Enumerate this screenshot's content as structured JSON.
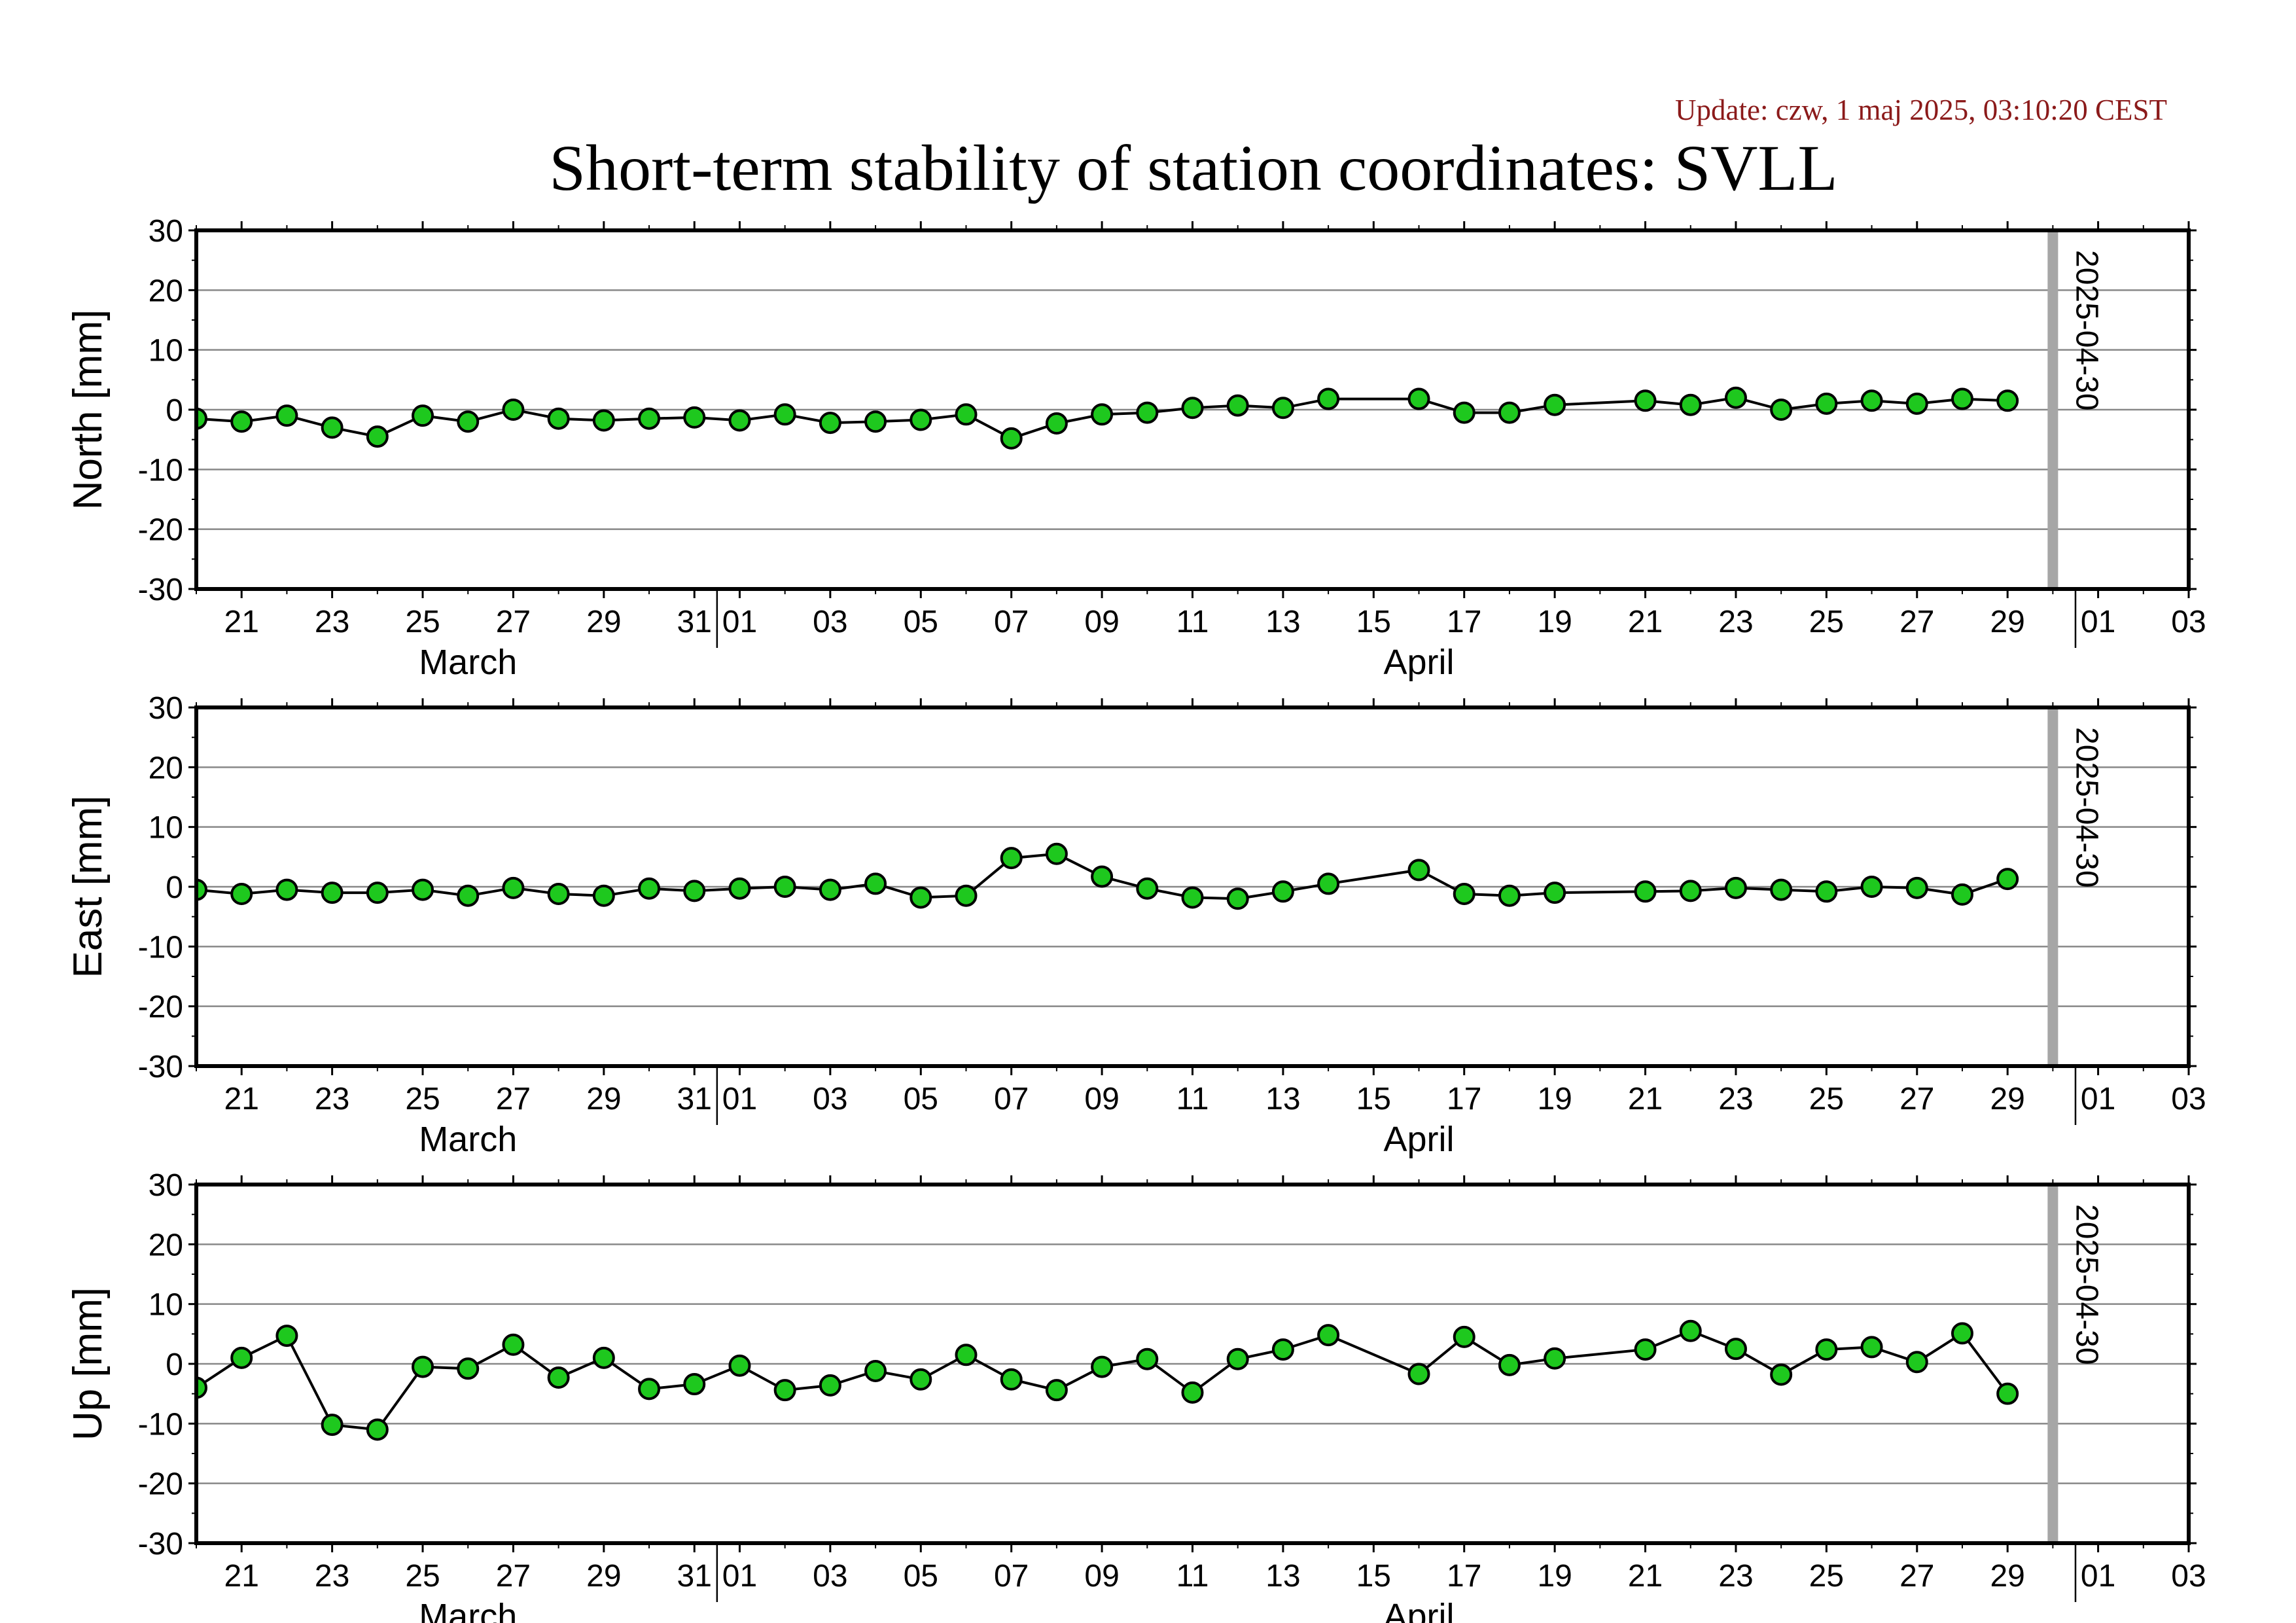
{
  "update_text": "Update: czw, 1 maj 2025, 03:10:20 CEST",
  "title": "Short-term stability of station coordinates: SVLL",
  "colors": {
    "update": "#8b1a1a",
    "marker_fill": "#1ec81e",
    "marker_stroke": "#000000",
    "line": "#000000",
    "grid": "#888888",
    "vline": "#a6a6a6"
  },
  "x_axis": {
    "range": [
      "2025-03-20",
      "2025-05-03"
    ],
    "tick_labels": [
      "21",
      "23",
      "25",
      "27",
      "29",
      "31",
      "01",
      "03",
      "05",
      "07",
      "09",
      "11",
      "13",
      "15",
      "17",
      "19",
      "21",
      "23",
      "25",
      "27",
      "29",
      "01",
      "03"
    ],
    "month_labels": [
      "March",
      "April"
    ]
  },
  "marker_line": {
    "date": "2025-04-30",
    "label": "2025-04-30"
  },
  "chart_data": [
    {
      "type": "line",
      "ylabel": "North [mm]",
      "ylim": [
        -30,
        30
      ],
      "yticks": [
        "30",
        "20",
        "10",
        "0",
        "-10",
        "-20",
        "-30"
      ],
      "grid": true,
      "x": [
        "2025-03-20",
        "2025-03-21",
        "2025-03-22",
        "2025-03-23",
        "2025-03-24",
        "2025-03-25",
        "2025-03-26",
        "2025-03-27",
        "2025-03-28",
        "2025-03-29",
        "2025-03-30",
        "2025-03-31",
        "2025-04-01",
        "2025-04-02",
        "2025-04-03",
        "2025-04-04",
        "2025-04-05",
        "2025-04-06",
        "2025-04-07",
        "2025-04-08",
        "2025-04-09",
        "2025-04-10",
        "2025-04-11",
        "2025-04-12",
        "2025-04-13",
        "2025-04-14",
        "2025-04-16",
        "2025-04-17",
        "2025-04-18",
        "2025-04-19",
        "2025-04-21",
        "2025-04-22",
        "2025-04-23",
        "2025-04-24",
        "2025-04-25",
        "2025-04-26",
        "2025-04-27",
        "2025-04-28",
        "2025-04-29"
      ],
      "values": [
        -1.5,
        -2,
        -1,
        -3,
        -4.5,
        -1,
        -2,
        0,
        -1.5,
        -1.8,
        -1.5,
        -1.3,
        -1.8,
        -0.8,
        -2.2,
        -2,
        -1.7,
        -0.8,
        -4.8,
        -2.3,
        -0.8,
        -0.5,
        0.3,
        0.7,
        0.3,
        1.8,
        1.8,
        -0.5,
        -0.5,
        0.8,
        1.5,
        0.8,
        2,
        0,
        1,
        1.5,
        1,
        1.8,
        1.5
      ]
    },
    {
      "type": "line",
      "ylabel": "East [mm]",
      "ylim": [
        -30,
        30
      ],
      "yticks": [
        "30",
        "20",
        "10",
        "0",
        "-10",
        "-20",
        "-30"
      ],
      "grid": true,
      "x": [
        "2025-03-20",
        "2025-03-21",
        "2025-03-22",
        "2025-03-23",
        "2025-03-24",
        "2025-03-25",
        "2025-03-26",
        "2025-03-27",
        "2025-03-28",
        "2025-03-29",
        "2025-03-30",
        "2025-03-31",
        "2025-04-01",
        "2025-04-02",
        "2025-04-03",
        "2025-04-04",
        "2025-04-05",
        "2025-04-06",
        "2025-04-07",
        "2025-04-08",
        "2025-04-09",
        "2025-04-10",
        "2025-04-11",
        "2025-04-12",
        "2025-04-13",
        "2025-04-14",
        "2025-04-16",
        "2025-04-17",
        "2025-04-18",
        "2025-04-19",
        "2025-04-21",
        "2025-04-22",
        "2025-04-23",
        "2025-04-24",
        "2025-04-25",
        "2025-04-26",
        "2025-04-27",
        "2025-04-28",
        "2025-04-29"
      ],
      "values": [
        -0.5,
        -1.2,
        -0.5,
        -1,
        -1,
        -0.5,
        -1.5,
        -0.2,
        -1.2,
        -1.5,
        -0.3,
        -0.7,
        -0.3,
        0,
        -0.5,
        0.5,
        -1.8,
        -1.5,
        4.8,
        5.5,
        1.7,
        -0.3,
        -1.8,
        -2,
        -0.8,
        0.5,
        2.8,
        -1.2,
        -1.5,
        -1,
        -0.8,
        -0.7,
        -0.2,
        -0.5,
        -0.8,
        0,
        -0.2,
        -1.3,
        1.3
      ]
    },
    {
      "type": "line",
      "ylabel": "Up [mm]",
      "ylim": [
        -30,
        30
      ],
      "yticks": [
        "30",
        "20",
        "10",
        "0",
        "-10",
        "-20",
        "-30"
      ],
      "grid": true,
      "x": [
        "2025-03-20",
        "2025-03-21",
        "2025-03-22",
        "2025-03-23",
        "2025-03-24",
        "2025-03-25",
        "2025-03-26",
        "2025-03-27",
        "2025-03-28",
        "2025-03-29",
        "2025-03-30",
        "2025-03-31",
        "2025-04-01",
        "2025-04-02",
        "2025-04-03",
        "2025-04-04",
        "2025-04-05",
        "2025-04-06",
        "2025-04-07",
        "2025-04-08",
        "2025-04-09",
        "2025-04-10",
        "2025-04-11",
        "2025-04-12",
        "2025-04-13",
        "2025-04-14",
        "2025-04-16",
        "2025-04-17",
        "2025-04-18",
        "2025-04-19",
        "2025-04-21",
        "2025-04-22",
        "2025-04-23",
        "2025-04-24",
        "2025-04-25",
        "2025-04-26",
        "2025-04-27",
        "2025-04-28",
        "2025-04-29"
      ],
      "values": [
        -4,
        1,
        4.7,
        -10.2,
        -11,
        -0.5,
        -0.8,
        3.2,
        -2.3,
        1,
        -4.2,
        -3.4,
        -0.3,
        -4.4,
        -3.6,
        -1.2,
        -2.6,
        1.5,
        -2.6,
        -4.4,
        -0.5,
        0.8,
        -4.8,
        0.8,
        2.4,
        4.8,
        -1.7,
        4.5,
        -0.2,
        0.9,
        2.4,
        5.5,
        2.5,
        -1.8,
        2.4,
        2.8,
        0.3,
        5.1,
        -5
      ]
    }
  ]
}
